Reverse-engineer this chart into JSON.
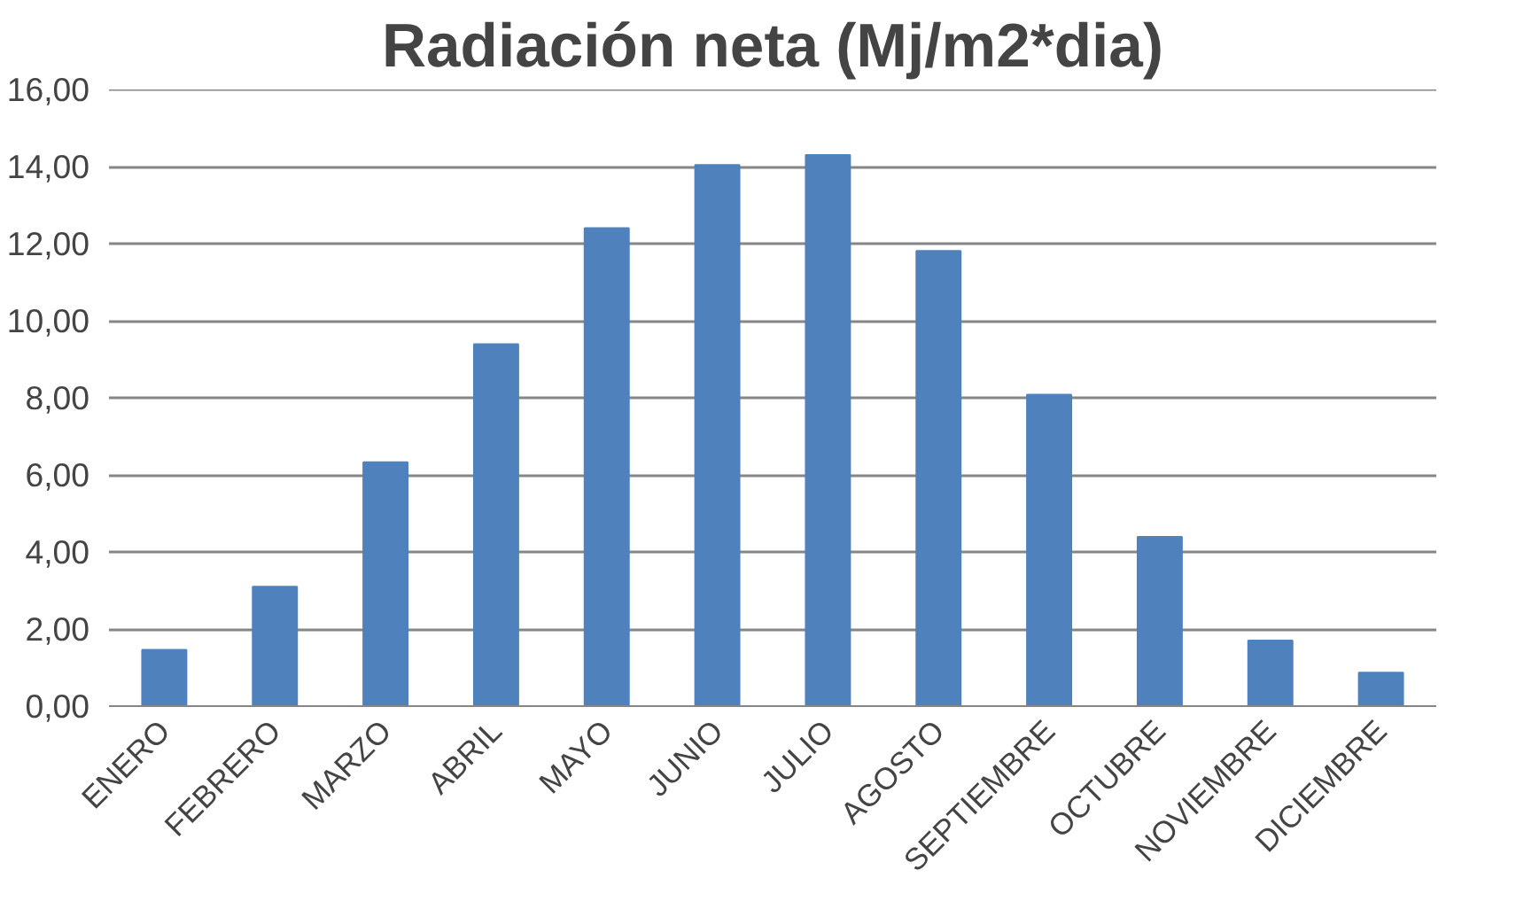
{
  "chart_data": {
    "type": "bar",
    "title": "Radiación neta (Mj/m2*dia)",
    "categories": [
      "ENERO",
      "FEBRERO",
      "MARZO",
      "ABRIL",
      "MAYO",
      "JUNIO",
      "JULIO",
      "AGOSTO",
      "SEPTIEMBRE",
      "OCTUBRE",
      "NOVIEMBRE",
      "DICIEMBRE"
    ],
    "values": [
      1.46,
      3.1,
      6.33,
      9.39,
      12.4,
      14.04,
      14.3,
      11.81,
      8.08,
      4.39,
      1.7,
      0.87
    ],
    "color": "#4f81bd",
    "ylim": [
      0,
      16
    ],
    "yticks": [
      {
        "value": 0,
        "label": "0,00"
      },
      {
        "value": 2,
        "label": "2,00"
      },
      {
        "value": 4,
        "label": "4,00"
      },
      {
        "value": 6,
        "label": "6,00"
      },
      {
        "value": 8,
        "label": "8,00"
      },
      {
        "value": 10,
        "label": "10,00"
      },
      {
        "value": 12,
        "label": "12,00"
      },
      {
        "value": 14,
        "label": "14,00"
      },
      {
        "value": 16,
        "label": "16,00"
      }
    ],
    "grid": "y"
  }
}
